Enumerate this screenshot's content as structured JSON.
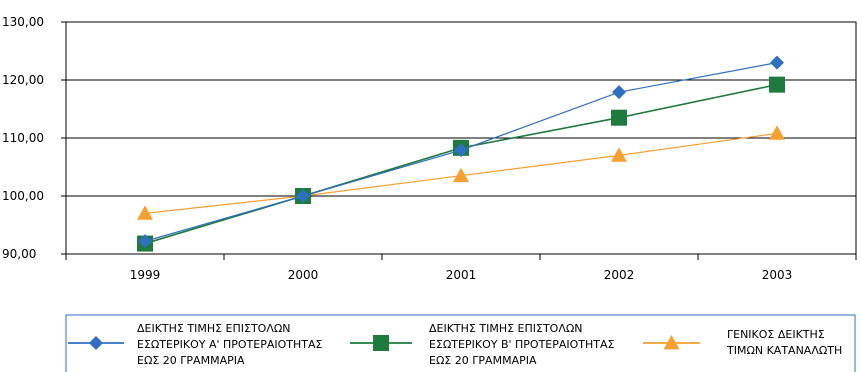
{
  "chart_data": {
    "type": "line",
    "title": "",
    "xlabel": "",
    "ylabel": "",
    "categories": [
      "1999",
      "2000",
      "2001",
      "2002",
      "2003"
    ],
    "ylim": [
      90,
      130
    ],
    "ytick_labels": [
      "90,00",
      "100,00",
      "110,00",
      "120,00",
      "130,00"
    ],
    "grid": true,
    "legend_position": "bottom",
    "series": [
      {
        "name_lines": [
          "ΔΕΙΚΤΗΣ ΤΙΜΗΣ ΕΠΙΣΤΟΛΩΝ",
          "ΕΣΩΤΕΡΙΚΟΥ Α' ΠΡΟΤΕΡΑΙΟΤΗΤΑΣ",
          "ΕΩΣ 20 ΓΡΑΜΜΑΡΙΑ"
        ],
        "values": [
          92.2,
          100.0,
          107.9,
          117.9,
          123.0
        ],
        "color": "#2e6fbf",
        "marker": "diamond"
      },
      {
        "name_lines": [
          "ΔΕΙΚΤΗΣ ΤΙΜΗΣ ΕΠΙΣΤΟΛΩΝ",
          "ΕΣΩΤΕΡΙΚΟΥ Β' ΠΡΟΤΕΡΑΙΟΤΗΤΑΣ",
          "ΕΩΣ 20 ΓΡΑΜΜΑΡΙΑ"
        ],
        "values": [
          91.8,
          100.0,
          108.3,
          113.5,
          119.2
        ],
        "color": "#1f7a3e",
        "marker": "square"
      },
      {
        "name_lines": [
          "ΓΕΝΙΚΟΣ ΔΕΙΚΤΗΣ",
          "ΤΙΜΩΝ ΚΑΤΑΝΑΛΩΤΗ"
        ],
        "values": [
          97.0,
          100.0,
          103.5,
          107.0,
          110.8
        ],
        "color": "#f5a030",
        "marker": "triangle"
      }
    ]
  }
}
